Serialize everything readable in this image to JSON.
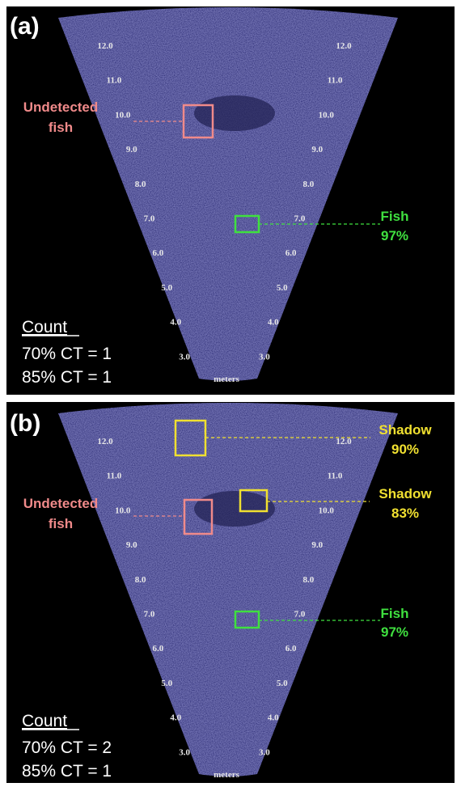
{
  "panels": [
    {
      "label": "(a)",
      "ranges": [
        "12.0",
        "11.0",
        "10.0",
        "9.0",
        "8.0",
        "7.0",
        "6.0",
        "5.0",
        "4.0",
        "3.0"
      ],
      "unit": "meters",
      "annotations": [
        {
          "lines": [
            "Undetected",
            "fish"
          ]
        },
        {
          "lines": [
            "Fish",
            "97%"
          ]
        }
      ],
      "count": {
        "title": "Count",
        "lines": [
          "70% CT = 1",
          "85% CT = 1"
        ]
      }
    },
    {
      "label": "(b)",
      "ranges": [
        "12.0",
        "11.0",
        "10.0",
        "9.0",
        "8.0",
        "7.0",
        "6.0",
        "5.0",
        "4.0",
        "3.0"
      ],
      "unit": "meters",
      "annotations": [
        {
          "lines": [
            "Shadow",
            "90%"
          ]
        },
        {
          "lines": [
            "Shadow",
            "83%"
          ]
        },
        {
          "lines": [
            "Undetected",
            "fish"
          ]
        },
        {
          "lines": [
            "Fish",
            "97%"
          ]
        }
      ],
      "count": {
        "title": "Count",
        "lines": [
          "70% CT = 2",
          "85% CT = 1"
        ]
      }
    }
  ]
}
